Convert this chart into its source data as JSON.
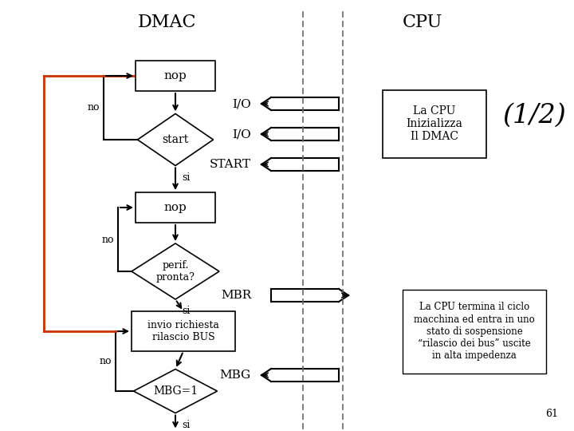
{
  "bg_color": "#ffffff",
  "title_dmac": "DMAC",
  "title_cpu": "CPU",
  "subtitle": "(1/2)",
  "loop_color": "#cc3300",
  "dashed_color": "#666666",
  "font_size_title": 16,
  "font_size_subtitle": 24
}
